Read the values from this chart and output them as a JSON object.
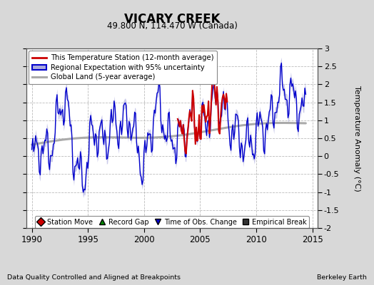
{
  "title": "VICARY CREEK",
  "subtitle": "49.800 N, 114.470 W (Canada)",
  "ylabel": "Temperature Anomaly (°C)",
  "xlabel_bottom_left": "Data Quality Controlled and Aligned at Breakpoints",
  "xlabel_bottom_right": "Berkeley Earth",
  "xlim": [
    1989.5,
    2015.5
  ],
  "ylim": [
    -2.0,
    3.0
  ],
  "yticks": [
    -2,
    -1.5,
    -1,
    -0.5,
    0,
    0.5,
    1,
    1.5,
    2,
    2.5,
    3
  ],
  "xticks": [
    1990,
    1995,
    2000,
    2005,
    2010,
    2015
  ],
  "bg_color": "#d8d8d8",
  "plot_bg_color": "#ffffff",
  "grid_color": "#bbbbbb",
  "regional_color": "#0000cc",
  "regional_fill_color": "#aaaadd",
  "station_color": "#cc0000",
  "global_color": "#aaaaaa",
  "legend_items": [
    {
      "label": "This Temperature Station (12-month average)",
      "color": "#cc0000",
      "lw": 2
    },
    {
      "label": "Regional Expectation with 95% uncertainty",
      "color": "#0000cc",
      "fill": "#aaaadd"
    },
    {
      "label": "Global Land (5-year average)",
      "color": "#aaaaaa",
      "lw": 2
    }
  ],
  "bottom_legend": [
    {
      "label": "Station Move",
      "marker": "D",
      "color": "#cc0000"
    },
    {
      "label": "Record Gap",
      "marker": "^",
      "color": "#008800"
    },
    {
      "label": "Time of Obs. Change",
      "marker": "v",
      "color": "#0000cc"
    },
    {
      "label": "Empirical Break",
      "marker": "s",
      "color": "#333333"
    }
  ]
}
